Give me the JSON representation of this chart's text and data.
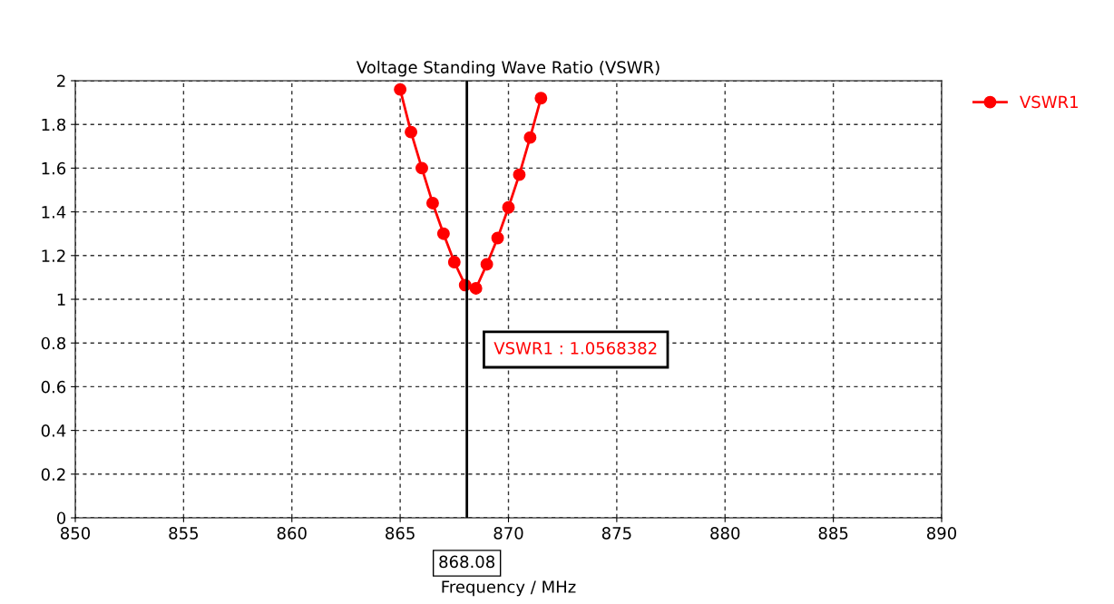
{
  "chart_data": {
    "type": "line",
    "title": "Voltage Standing Wave Ratio (VSWR)",
    "xlabel": "Frequency / MHz",
    "x": [
      865,
      865.5,
      866,
      866.5,
      867,
      867.5,
      868,
      868.5,
      869,
      869.5,
      870,
      870.5,
      871,
      871.5
    ],
    "series": [
      {
        "name": "VSWR1",
        "color": "#ff0000",
        "values": [
          1.96,
          1.765,
          1.6,
          1.44,
          1.3,
          1.17,
          1.065,
          1.05,
          1.16,
          1.28,
          1.42,
          1.57,
          1.74,
          1.92
        ]
      }
    ],
    "xlim": [
      850,
      890
    ],
    "xticks": [
      850,
      855,
      860,
      865,
      870,
      875,
      880,
      885,
      890
    ],
    "ylim": [
      0,
      2
    ],
    "yticks": [
      0,
      0.2,
      0.4,
      0.6,
      0.8,
      1,
      1.2,
      1.4,
      1.6,
      1.8,
      2
    ],
    "ref_lines": [
      {
        "axis": "x",
        "value": 868.08,
        "label": "868.08",
        "color": "#000000"
      }
    ],
    "annotations": [
      "VSWR1 : 1.0568382"
    ],
    "grid": true,
    "legend": "top right",
    "marker": "circle",
    "line_style": "solid"
  }
}
